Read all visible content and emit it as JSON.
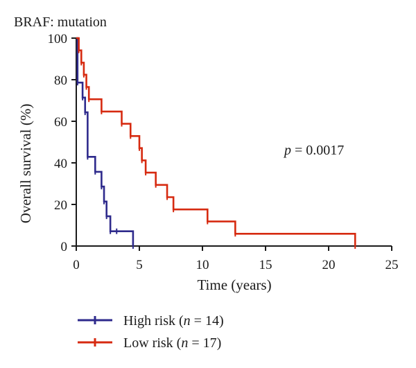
{
  "chart_data": {
    "type": "line",
    "subtype": "kaplan-meier step",
    "title": "BRAF: mutation",
    "xlabel": "Time (years)",
    "ylabel": "Overall survival (%)",
    "xlim": [
      0,
      25
    ],
    "ylim": [
      0,
      100
    ],
    "x_ticks": [
      0,
      5,
      10,
      15,
      20,
      25
    ],
    "y_ticks": [
      0,
      20,
      40,
      60,
      80,
      100
    ],
    "grid": false,
    "legend_position": "bottom-left",
    "annotation": {
      "italic": "p",
      "rest": " = 0.0017"
    },
    "series": [
      {
        "name": "High risk",
        "name_n": "14",
        "color": "#2e2a8c",
        "x": [
          0,
          0.1,
          0.5,
          0.7,
          0.9,
          1.5,
          2.0,
          2.2,
          2.4,
          2.7,
          3.2,
          4.5
        ],
        "y": [
          100,
          78.6,
          71.4,
          64.3,
          42.9,
          35.7,
          28.6,
          21.4,
          14.3,
          7.1,
          7.1,
          0
        ]
      },
      {
        "name": "Low risk",
        "name_n": "17",
        "color": "#d62a10",
        "x": [
          0,
          0.2,
          0.4,
          0.6,
          0.8,
          1.0,
          2.0,
          3.6,
          4.3,
          5.0,
          5.2,
          5.5,
          6.3,
          7.2,
          7.7,
          10.4,
          12.6,
          22.1
        ],
        "y": [
          100,
          94.1,
          88.2,
          82.4,
          76.5,
          70.6,
          64.7,
          58.8,
          52.9,
          47.1,
          41.2,
          35.3,
          29.4,
          23.5,
          17.6,
          11.8,
          5.9,
          0
        ]
      }
    ]
  }
}
